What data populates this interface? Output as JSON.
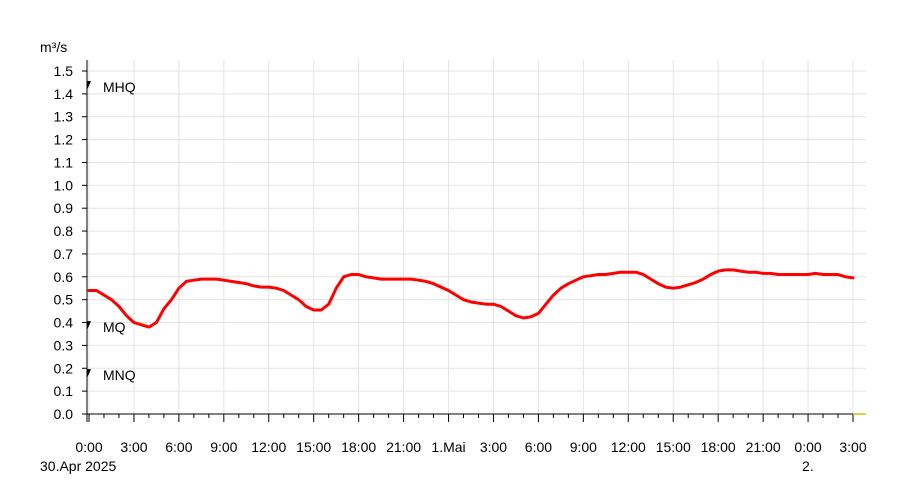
{
  "chart_data": {
    "type": "line",
    "ylabel": "m³/s",
    "ylim": [
      0,
      1.5
    ],
    "yticks": [
      "0.0",
      "0.1",
      "0.2",
      "0.3",
      "0.4",
      "0.5",
      "0.6",
      "0.7",
      "0.8",
      "0.9",
      "1.0",
      "1.1",
      "1.2",
      "1.3",
      "1.4",
      "1.5"
    ],
    "xlim_hours": [
      0,
      51
    ],
    "xticks": [
      {
        "h": 0,
        "label": "0:00"
      },
      {
        "h": 3,
        "label": "3:00"
      },
      {
        "h": 6,
        "label": "6:00"
      },
      {
        "h": 9,
        "label": "9:00"
      },
      {
        "h": 12,
        "label": "12:00"
      },
      {
        "h": 15,
        "label": "15:00"
      },
      {
        "h": 18,
        "label": "18:00"
      },
      {
        "h": 21,
        "label": "21:00"
      },
      {
        "h": 24,
        "label": "1.Mai"
      },
      {
        "h": 27,
        "label": "3:00"
      },
      {
        "h": 30,
        "label": "6:00"
      },
      {
        "h": 33,
        "label": "9:00"
      },
      {
        "h": 36,
        "label": "12:00"
      },
      {
        "h": 39,
        "label": "15:00"
      },
      {
        "h": 42,
        "label": "18:00"
      },
      {
        "h": 45,
        "label": "21:00"
      },
      {
        "h": 48,
        "label": "0:00"
      },
      {
        "h": 51,
        "label": "3:00"
      }
    ],
    "date_labels": [
      {
        "h": 0,
        "label": "30.Apr 2025"
      },
      {
        "h": 48,
        "label": "2."
      }
    ],
    "grid": true,
    "reference_lines": [
      {
        "name": "MHQ",
        "value": 1.43
      },
      {
        "name": "MQ",
        "value": 0.38
      },
      {
        "name": "MNQ",
        "value": 0.17
      }
    ],
    "series": [
      {
        "color": "#ff0000",
        "points": [
          [
            0,
            0.54
          ],
          [
            0.5,
            0.54
          ],
          [
            1,
            0.52
          ],
          [
            1.5,
            0.5
          ],
          [
            2,
            0.47
          ],
          [
            2.5,
            0.43
          ],
          [
            3,
            0.4
          ],
          [
            3.5,
            0.39
          ],
          [
            4,
            0.38
          ],
          [
            4.5,
            0.4
          ],
          [
            5,
            0.46
          ],
          [
            5.5,
            0.5
          ],
          [
            6,
            0.55
          ],
          [
            6.5,
            0.58
          ],
          [
            7,
            0.585
          ],
          [
            7.5,
            0.59
          ],
          [
            8,
            0.59
          ],
          [
            8.5,
            0.59
          ],
          [
            9,
            0.585
          ],
          [
            9.5,
            0.58
          ],
          [
            10,
            0.575
          ],
          [
            10.5,
            0.57
          ],
          [
            11,
            0.56
          ],
          [
            11.5,
            0.555
          ],
          [
            12,
            0.555
          ],
          [
            12.5,
            0.55
          ],
          [
            13,
            0.54
          ],
          [
            13.5,
            0.52
          ],
          [
            14,
            0.5
          ],
          [
            14.5,
            0.47
          ],
          [
            15,
            0.455
          ],
          [
            15.5,
            0.455
          ],
          [
            16,
            0.48
          ],
          [
            16.5,
            0.55
          ],
          [
            17,
            0.6
          ],
          [
            17.5,
            0.61
          ],
          [
            18,
            0.61
          ],
          [
            18.5,
            0.6
          ],
          [
            19,
            0.595
          ],
          [
            19.5,
            0.59
          ],
          [
            20,
            0.59
          ],
          [
            20.5,
            0.59
          ],
          [
            21,
            0.59
          ],
          [
            21.5,
            0.59
          ],
          [
            22,
            0.585
          ],
          [
            22.5,
            0.58
          ],
          [
            23,
            0.57
          ],
          [
            23.5,
            0.555
          ],
          [
            24,
            0.54
          ],
          [
            24.5,
            0.52
          ],
          [
            25,
            0.5
          ],
          [
            25.5,
            0.49
          ],
          [
            26,
            0.485
          ],
          [
            26.5,
            0.48
          ],
          [
            27,
            0.48
          ],
          [
            27.5,
            0.47
          ],
          [
            28,
            0.45
          ],
          [
            28.5,
            0.43
          ],
          [
            29,
            0.42
          ],
          [
            29.5,
            0.425
          ],
          [
            30,
            0.44
          ],
          [
            30.5,
            0.48
          ],
          [
            31,
            0.52
          ],
          [
            31.5,
            0.55
          ],
          [
            32,
            0.57
          ],
          [
            32.5,
            0.585
          ],
          [
            33,
            0.6
          ],
          [
            33.5,
            0.605
          ],
          [
            34,
            0.61
          ],
          [
            34.5,
            0.61
          ],
          [
            35,
            0.615
          ],
          [
            35.5,
            0.62
          ],
          [
            36,
            0.62
          ],
          [
            36.5,
            0.62
          ],
          [
            37,
            0.61
          ],
          [
            37.5,
            0.59
          ],
          [
            38,
            0.57
          ],
          [
            38.5,
            0.555
          ],
          [
            39,
            0.55
          ],
          [
            39.5,
            0.555
          ],
          [
            40,
            0.565
          ],
          [
            40.5,
            0.575
          ],
          [
            41,
            0.59
          ],
          [
            41.5,
            0.61
          ],
          [
            42,
            0.625
          ],
          [
            42.5,
            0.63
          ],
          [
            43,
            0.63
          ],
          [
            43.5,
            0.625
          ],
          [
            44,
            0.62
          ],
          [
            44.5,
            0.62
          ],
          [
            45,
            0.615
          ],
          [
            45.5,
            0.615
          ],
          [
            46,
            0.61
          ],
          [
            46.5,
            0.61
          ],
          [
            47,
            0.61
          ],
          [
            47.5,
            0.61
          ],
          [
            48,
            0.61
          ],
          [
            48.5,
            0.615
          ],
          [
            49,
            0.61
          ],
          [
            49.5,
            0.61
          ],
          [
            50,
            0.61
          ],
          [
            50.5,
            0.6
          ],
          [
            51,
            0.595
          ]
        ]
      }
    ]
  }
}
